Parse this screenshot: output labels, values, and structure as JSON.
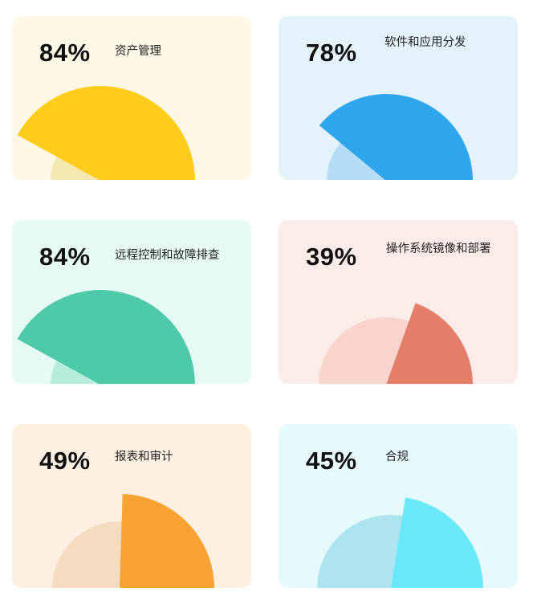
{
  "chart_data": [
    {
      "type": "gauge",
      "value": 84,
      "value_label": "84%",
      "title": "资产管理",
      "colors": {
        "bg": "#fdf8e6",
        "track": "#f5e7b0",
        "fill": "#fecd1c"
      }
    },
    {
      "type": "gauge",
      "value": 78,
      "value_label": "78%",
      "title": "软件和应用分发",
      "colors": {
        "bg": "#e3f2fb",
        "track": "#b6ddf6",
        "fill": "#2ea6ee"
      }
    },
    {
      "type": "gauge",
      "value": 84,
      "value_label": "84%",
      "title": "远程控制和故障排查",
      "colors": {
        "bg": "#e6faf4",
        "track": "#b8eddd",
        "fill": "#4ecaa9"
      }
    },
    {
      "type": "gauge",
      "value": 39,
      "value_label": "39%",
      "title": "操作系统镜像和部署",
      "colors": {
        "bg": "#fbebe9",
        "track": "#f8d4cc",
        "fill": "#e37f69"
      }
    },
    {
      "type": "gauge",
      "value": 49,
      "value_label": "49%",
      "title": "报表和审计",
      "colors": {
        "bg": "#fdf0e1",
        "track": "#f5dcc0",
        "fill": "#f8a233"
      }
    },
    {
      "type": "gauge",
      "value": 45,
      "value_label": "45%",
      "title": "合规",
      "colors": {
        "bg": "#e6f9fd",
        "track": "#ade4ef",
        "fill": "#6be8f8"
      }
    }
  ]
}
